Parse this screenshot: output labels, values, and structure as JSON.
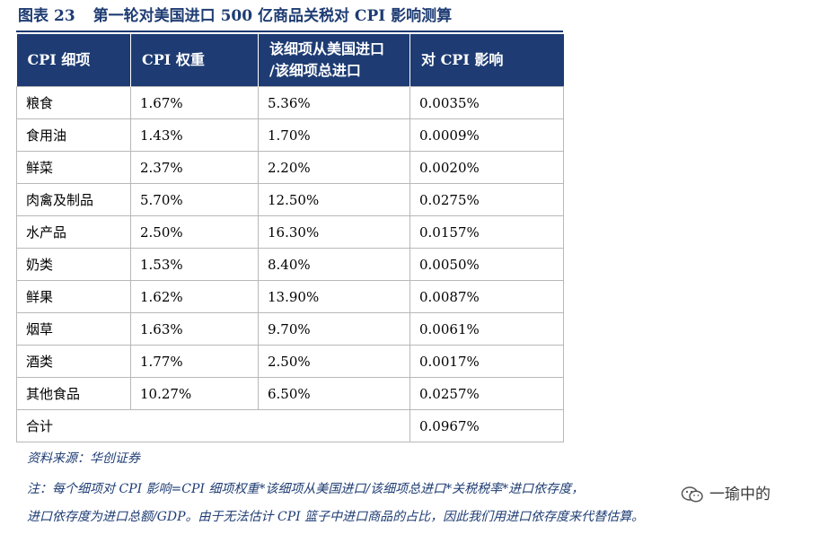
{
  "figure": {
    "label": "图表",
    "number": "23",
    "title": "第一轮对美国进口 500 亿商品关税对 CPI 影响测算"
  },
  "table": {
    "headers": [
      "CPI 细项",
      "CPI 权重",
      "该细项从美国进口\n/该细项总进口",
      "对 CPI 影响"
    ],
    "rows": [
      [
        "粮食",
        "1.67%",
        "5.36%",
        "0.0035%"
      ],
      [
        "食用油",
        "1.43%",
        "1.70%",
        "0.0009%"
      ],
      [
        "鲜菜",
        "2.37%",
        "2.20%",
        "0.0020%"
      ],
      [
        "肉禽及制品",
        "5.70%",
        "12.50%",
        "0.0275%"
      ],
      [
        "水产品",
        "2.50%",
        "16.30%",
        "0.0157%"
      ],
      [
        "奶类",
        "1.53%",
        "8.40%",
        "0.0050%"
      ],
      [
        "鲜果",
        "1.62%",
        "13.90%",
        "0.0087%"
      ],
      [
        "烟草",
        "1.63%",
        "9.70%",
        "0.0061%"
      ],
      [
        "酒类",
        "1.77%",
        "2.50%",
        "0.0017%"
      ],
      [
        "其他食品",
        "10.27%",
        "6.50%",
        "0.0257%"
      ]
    ],
    "total": {
      "label": "合计",
      "value": "0.0967%"
    }
  },
  "source": "资料来源：华创证券",
  "notes": [
    "注：每个细项对 CPI 影响=CPI 细项权重*该细项从美国进口/该细项总进口*关税税率*进口依存度，",
    "进口依存度为进口总额/GDP。由于无法估计 CPI 篮子中进口商品的占比，因此我们用进口依存度来代替估算。"
  ],
  "watermark": {
    "icon": "wechat-icon",
    "text": "一瑜中的"
  },
  "colors": {
    "header_bg": "#1e3c73",
    "accent_text": "#1e3c73",
    "border": "#b8b8b8"
  }
}
